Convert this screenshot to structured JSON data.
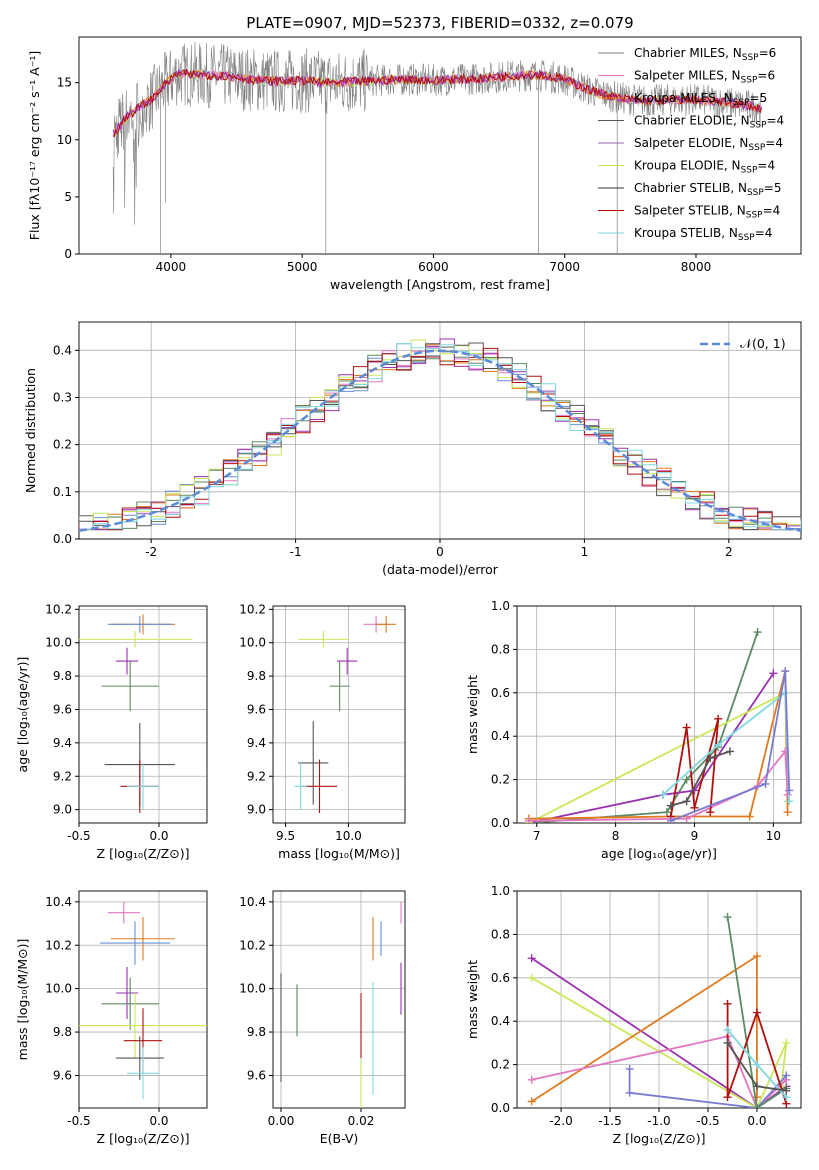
{
  "figure": {
    "title": "PLATE=0907, MJD=52373, FIBERID=0332, z=0.079"
  },
  "colors": [
    "#1f1f1f",
    "#e377c2",
    "#ff7f0e",
    "#2ca02c",
    "#9467bd",
    "#d4e157",
    "#555555",
    "#c00000",
    "#7fd3e0"
  ],
  "chart_data": [
    {
      "id": "spectrum",
      "type": "line",
      "xlabel": "wavelength [Angstrom, rest frame]",
      "ylabel": "Flux [fλ10⁻¹⁷ erg cm⁻² s⁻¹ A⁻¹]",
      "xlim": [
        3300,
        8800
      ],
      "ylim": [
        0,
        19
      ],
      "xticks": [
        4000,
        5000,
        6000,
        7000,
        8000
      ],
      "yticks": [
        0,
        5,
        10,
        15
      ],
      "legend_position": "top-right",
      "series": [
        {
          "name": "Chabrier MILES, N_SSP=6",
          "color": "#808080"
        },
        {
          "name": "Salpeter MILES, N_SSP=6",
          "color": "#e377c2"
        },
        {
          "name": "Kroupa MILES, N_SSP=5",
          "color": "#ff7f0e"
        },
        {
          "name": "Chabrier ELODIE, N_SSP=4",
          "color": "#555555"
        },
        {
          "name": "Salpeter ELODIE, N_SSP=4",
          "color": "#9467bd"
        },
        {
          "name": "Kroupa ELODIE, N_SSP=4",
          "color": "#d4e157"
        },
        {
          "name": "Chabrier STELIB, N_SSP=5",
          "color": "#333333"
        },
        {
          "name": "Salpeter STELIB, N_SSP=4",
          "color": "#c00000"
        },
        {
          "name": "Kroupa STELIB, N_SSP=4",
          "color": "#7fd3e0"
        }
      ],
      "model_curve": {
        "x": [
          3560,
          3650,
          3750,
          3850,
          3950,
          4050,
          4200,
          4400,
          4600,
          4800,
          5000,
          5200,
          5400,
          5600,
          5800,
          6000,
          6200,
          6400,
          6600,
          6800,
          7000,
          7200,
          7400,
          7600,
          7800,
          8000,
          8200,
          8400,
          8500
        ],
        "y": [
          10.5,
          11.8,
          12.8,
          13.5,
          14.8,
          15.8,
          15.7,
          15.6,
          15.3,
          15.1,
          15.2,
          15.0,
          15.1,
          15.2,
          15.3,
          15.2,
          15.3,
          15.4,
          15.6,
          15.7,
          15.3,
          14.3,
          13.7,
          13.4,
          13.5,
          13.5,
          13.3,
          13.0,
          12.7
        ]
      }
    },
    {
      "id": "residuals",
      "type": "line",
      "xlabel": "(data-model)/error",
      "ylabel": "Normed distribution",
      "xlim": [
        -2.5,
        2.5
      ],
      "ylim": [
        0,
        0.46
      ],
      "xticks": [
        -2,
        -1,
        0,
        1,
        2
      ],
      "yticks": [
        0.0,
        0.1,
        0.2,
        0.3,
        0.4
      ],
      "legend": "𝒩(0, 1)",
      "legend_position": "top-right",
      "curve": "normal(0,1)"
    },
    {
      "id": "age-vs-Z",
      "type": "scatter",
      "xlabel": "Z [log₁₀(Z/Z⊙)]",
      "ylabel": "age  [log₁₀(age/yr)]",
      "xlim": [
        -0.5,
        0.3
      ],
      "ylim": [
        8.92,
        10.22
      ],
      "xticks": [
        -0.5,
        0.0
      ],
      "yticks": [
        9.0,
        9.2,
        9.4,
        9.6,
        9.8,
        10.0,
        10.2
      ],
      "points": [
        {
          "x": -0.1,
          "y": 10.11,
          "xerr": 0.2,
          "yerr": 0.06,
          "c": 2
        },
        {
          "x": -0.12,
          "y": 10.11,
          "xerr": 0.2,
          "yerr": 0.05,
          "c": 0
        },
        {
          "x": -0.15,
          "y": 10.02,
          "xerr": 0.36,
          "yerr": 0.05,
          "c": 5
        },
        {
          "x": -0.2,
          "y": 9.89,
          "xerr": 0.07,
          "yerr": 0.08,
          "c": 4
        },
        {
          "x": -0.18,
          "y": 9.74,
          "xerr": 0.18,
          "yerr": 0.15,
          "c": 3
        },
        {
          "x": -0.12,
          "y": 9.27,
          "xerr": 0.22,
          "yerr": 0.25,
          "c": 6
        },
        {
          "x": -0.12,
          "y": 9.14,
          "xerr": 0.12,
          "yerr": 0.16,
          "c": 7
        },
        {
          "x": -0.1,
          "y": 9.14,
          "xerr": 0.1,
          "yerr": 0.14,
          "c": 8
        }
      ]
    },
    {
      "id": "age-vs-mass",
      "type": "scatter",
      "xlabel": "mass [log₁₀(M/M⊙)]",
      "xlim": [
        9.4,
        10.45
      ],
      "ylim": [
        8.92,
        10.22
      ],
      "xticks": [
        9.5,
        10.0
      ],
      "yticks": [
        9.0,
        9.2,
        9.4,
        9.6,
        9.8,
        10.0,
        10.2
      ],
      "points": [
        {
          "x": 10.22,
          "y": 10.11,
          "xerr": 0.1,
          "yerr": 0.05,
          "c": 1
        },
        {
          "x": 10.3,
          "y": 10.11,
          "xerr": 0.08,
          "yerr": 0.05,
          "c": 2
        },
        {
          "x": 9.8,
          "y": 10.02,
          "xerr": 0.2,
          "yerr": 0.05,
          "c": 5
        },
        {
          "x": 9.99,
          "y": 9.89,
          "xerr": 0.08,
          "yerr": 0.08,
          "c": 4
        },
        {
          "x": 9.93,
          "y": 9.74,
          "xerr": 0.08,
          "yerr": 0.15,
          "c": 3
        },
        {
          "x": 9.72,
          "y": 9.28,
          "xerr": 0.12,
          "yerr": 0.25,
          "c": 6
        },
        {
          "x": 9.77,
          "y": 9.14,
          "xerr": 0.14,
          "yerr": 0.16,
          "c": 7
        },
        {
          "x": 9.62,
          "y": 9.14,
          "xerr": 0.05,
          "yerr": 0.14,
          "c": 8
        }
      ]
    },
    {
      "id": "massweight-vs-age",
      "type": "line",
      "xlabel": "age  [log₁₀(age/yr)]",
      "ylabel": "mass weight",
      "xlim": [
        6.75,
        10.35
      ],
      "ylim": [
        0,
        1.0
      ],
      "xticks": [
        7,
        8,
        9,
        10
      ],
      "yticks": [
        0.0,
        0.2,
        0.4,
        0.6,
        0.8,
        1.0
      ],
      "series": [
        {
          "c": 3,
          "points": [
            [
              6.9,
              0.0
            ],
            [
              8.65,
              0.05
            ],
            [
              8.9,
              0.2
            ],
            [
              9.3,
              0.35
            ],
            [
              9.8,
              0.88
            ]
          ]
        },
        {
          "c": 4,
          "points": [
            [
              6.9,
              0.0
            ],
            [
              8.6,
              0.13
            ],
            [
              9.0,
              0.15
            ],
            [
              10.0,
              0.69
            ]
          ]
        },
        {
          "c": 5,
          "points": [
            [
              6.9,
              0.0
            ],
            [
              10.15,
              0.6
            ],
            [
              10.18,
              0.1
            ]
          ]
        },
        {
          "c": 2,
          "points": [
            [
              6.9,
              0.02
            ],
            [
              8.7,
              0.03
            ],
            [
              9.7,
              0.03
            ],
            [
              10.15,
              0.7
            ],
            [
              10.18,
              0.05
            ]
          ]
        },
        {
          "c": 1,
          "points": [
            [
              6.9,
              0.01
            ],
            [
              8.9,
              0.02
            ],
            [
              9.8,
              0.17
            ],
            [
              10.15,
              0.33
            ],
            [
              10.18,
              0.13
            ]
          ]
        },
        {
          "c": 7,
          "points": [
            [
              8.7,
              0.03
            ],
            [
              8.9,
              0.44
            ],
            [
              9.0,
              0.07
            ],
            [
              9.3,
              0.48
            ],
            [
              9.2,
              0.05
            ]
          ]
        },
        {
          "c": 8,
          "points": [
            [
              8.6,
              0.13
            ],
            [
              9.3,
              0.36
            ],
            [
              10.15,
              0.6
            ],
            [
              10.2,
              0.1
            ]
          ]
        },
        {
          "c": 6,
          "points": [
            [
              8.7,
              0.08
            ],
            [
              8.9,
              0.1
            ],
            [
              9.2,
              0.3
            ],
            [
              9.45,
              0.33
            ]
          ]
        },
        {
          "c": 9,
          "points": [
            [
              8.7,
              0.01
            ],
            [
              9.9,
              0.18
            ],
            [
              10.15,
              0.7
            ],
            [
              10.2,
              0.15
            ]
          ]
        }
      ]
    },
    {
      "id": "mass-vs-Z",
      "type": "scatter",
      "xlabel": "Z [log₁₀(Z/Z⊙)]",
      "ylabel": "mass [log₁₀(M/M⊙)]",
      "xlim": [
        -0.5,
        0.3
      ],
      "ylim": [
        9.45,
        10.45
      ],
      "xticks": [
        -0.5,
        0.0
      ],
      "yticks": [
        9.6,
        9.8,
        10.0,
        10.2,
        10.4
      ],
      "points": [
        {
          "x": -0.22,
          "y": 10.35,
          "xerr": 0.1,
          "yerr": 0.05,
          "c": 1
        },
        {
          "x": -0.1,
          "y": 10.23,
          "xerr": 0.2,
          "yerr": 0.1,
          "c": 2
        },
        {
          "x": -0.15,
          "y": 10.21,
          "xerr": 0.22,
          "yerr": 0.1,
          "c": 0
        },
        {
          "x": -0.2,
          "y": 9.98,
          "xerr": 0.07,
          "yerr": 0.12,
          "c": 4
        },
        {
          "x": -0.18,
          "y": 9.93,
          "xerr": 0.18,
          "yerr": 0.12,
          "c": 3
        },
        {
          "x": -0.15,
          "y": 9.83,
          "xerr": 0.45,
          "yerr": 0.15,
          "c": 5
        },
        {
          "x": -0.1,
          "y": 9.76,
          "xerr": 0.12,
          "yerr": 0.15,
          "c": 7
        },
        {
          "x": -0.12,
          "y": 9.68,
          "xerr": 0.15,
          "yerr": 0.1,
          "c": 6
        },
        {
          "x": -0.1,
          "y": 9.61,
          "xerr": 0.1,
          "yerr": 0.12,
          "c": 8
        }
      ]
    },
    {
      "id": "mass-vs-ebv",
      "type": "scatter",
      "xlabel": "E(B-V)",
      "xlim": [
        -0.002,
        0.031
      ],
      "ylim": [
        9.45,
        10.45
      ],
      "xticks": [
        0.0,
        0.02
      ],
      "yticks": [
        9.6,
        9.8,
        10.0,
        10.2,
        10.4
      ],
      "points": [
        {
          "x": 0.0,
          "y": 9.82,
          "yerr": 0.25,
          "c": 6
        },
        {
          "x": 0.004,
          "y": 9.9,
          "yerr": 0.12,
          "c": 3
        },
        {
          "x": 0.02,
          "y": 9.83,
          "yerr": 0.15,
          "c": 7
        },
        {
          "x": 0.02,
          "y": 9.56,
          "yerr": 0.11,
          "c": 5
        },
        {
          "x": 0.023,
          "y": 10.23,
          "yerr": 0.1,
          "c": 2
        },
        {
          "x": 0.023,
          "y": 9.77,
          "yerr": 0.26,
          "c": 8
        },
        {
          "x": 0.025,
          "y": 10.23,
          "yerr": 0.08,
          "c": 0
        },
        {
          "x": 0.03,
          "y": 10.0,
          "yerr": 0.12,
          "c": 4
        },
        {
          "x": 0.03,
          "y": 10.35,
          "yerr": 0.05,
          "c": 1
        }
      ]
    },
    {
      "id": "massweight-vs-Z",
      "type": "line",
      "xlabel": "Z [log₁₀(Z/Z⊙)]",
      "ylabel": "mass weight",
      "xlim": [
        -2.45,
        0.45
      ],
      "ylim": [
        0,
        1.0
      ],
      "xticks": [
        -2.0,
        -1.5,
        -1.0,
        -0.5,
        0.0
      ],
      "yticks": [
        0.0,
        0.2,
        0.4,
        0.6,
        0.8,
        1.0
      ],
      "series": [
        {
          "c": 4,
          "points": [
            [
              -2.3,
              0.69
            ],
            [
              0.0,
              0.0
            ],
            [
              0.3,
              0.1
            ]
          ]
        },
        {
          "c": 5,
          "points": [
            [
              -2.3,
              0.6
            ],
            [
              0.0,
              0.0
            ],
            [
              0.3,
              0.3
            ],
            [
              0.25,
              0.1
            ]
          ]
        },
        {
          "c": 2,
          "points": [
            [
              -2.3,
              0.03
            ],
            [
              0.0,
              0.7
            ],
            [
              0.0,
              0.05
            ]
          ]
        },
        {
          "c": 1,
          "points": [
            [
              -2.3,
              0.13
            ],
            [
              -0.3,
              0.33
            ],
            [
              0.0,
              0.0
            ],
            [
              0.3,
              0.13
            ]
          ]
        },
        {
          "c": 9,
          "points": [
            [
              -1.3,
              0.18
            ],
            [
              -1.3,
              0.07
            ],
            [
              0.0,
              0.0
            ],
            [
              0.3,
              0.15
            ]
          ]
        },
        {
          "c": 3,
          "points": [
            [
              -0.3,
              0.88
            ],
            [
              0.0,
              0.0
            ],
            [
              0.3,
              0.09
            ]
          ]
        },
        {
          "c": 7,
          "points": [
            [
              -0.3,
              0.48
            ],
            [
              -0.3,
              0.05
            ],
            [
              0.0,
              0.44
            ],
            [
              0.3,
              0.02
            ]
          ]
        },
        {
          "c": 8,
          "points": [
            [
              -0.3,
              0.36
            ],
            [
              0.0,
              0.2
            ],
            [
              0.3,
              0.05
            ]
          ]
        },
        {
          "c": 6,
          "points": [
            [
              -0.3,
              0.3
            ],
            [
              0.0,
              0.1
            ],
            [
              0.3,
              0.08
            ]
          ]
        }
      ]
    }
  ]
}
